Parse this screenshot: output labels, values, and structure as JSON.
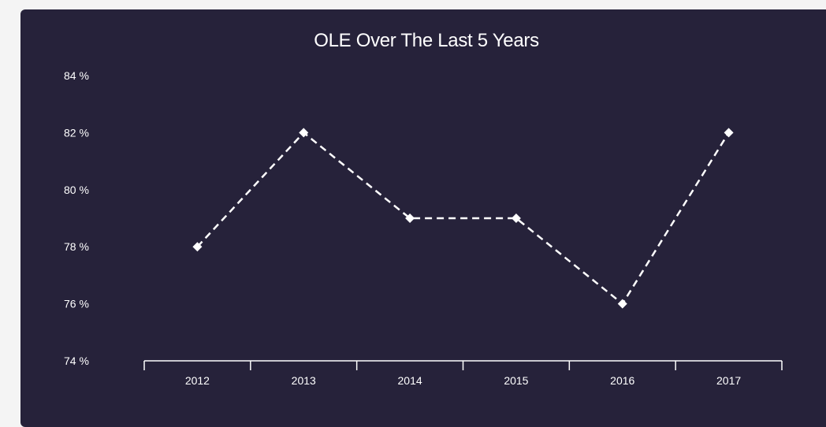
{
  "chart_data": {
    "type": "line",
    "title": "OLE Over The Last 5 Years",
    "xlabel": "",
    "ylabel": "",
    "categories": [
      "2012",
      "2013",
      "2014",
      "2015",
      "2016",
      "2017"
    ],
    "series": [
      {
        "values": [
          78,
          82,
          79,
          79,
          76,
          82
        ]
      }
    ],
    "yticks": [
      "84 %",
      "82 %",
      "80 %",
      "78 %",
      "76 %",
      "74 %"
    ],
    "ylim": [
      74,
      84
    ],
    "grid": false,
    "line_style": "dashed",
    "marker": "diamond",
    "colors": {
      "background": "#26223a",
      "line": "#ffffff",
      "text": "#ffffff"
    }
  }
}
